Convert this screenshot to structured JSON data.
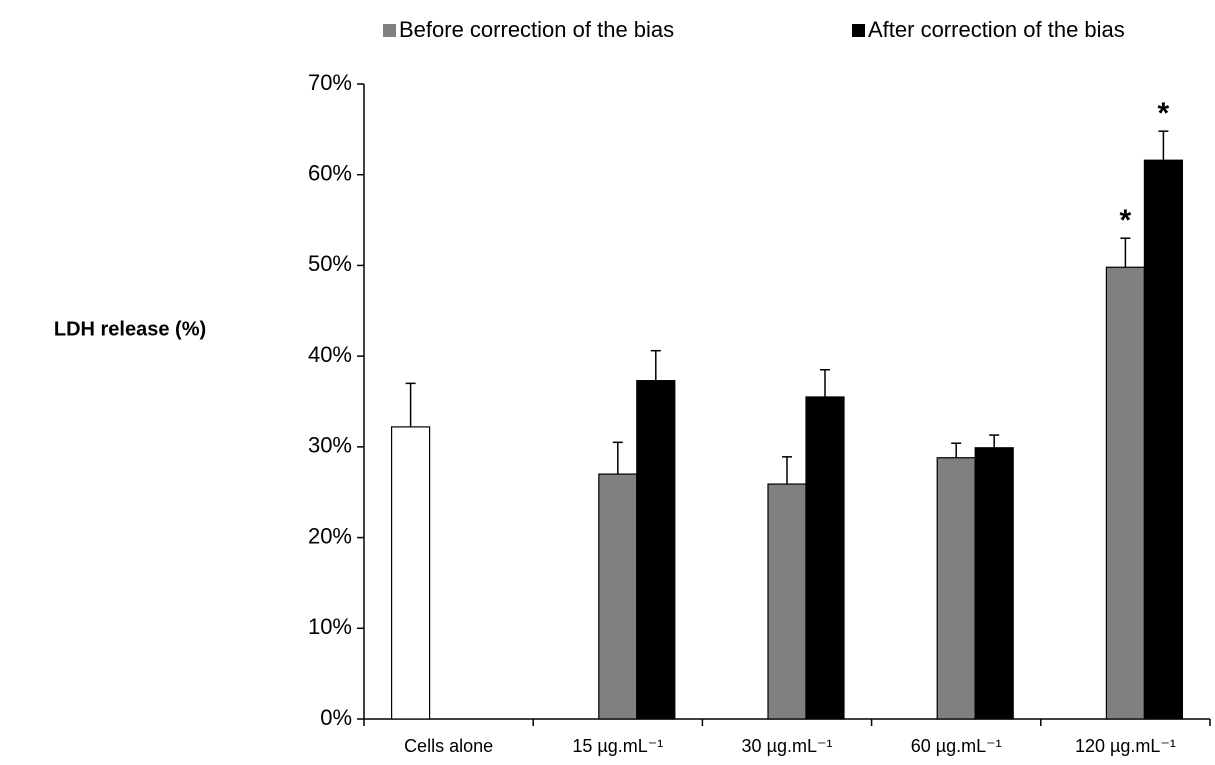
{
  "chart_data": {
    "type": "bar",
    "y_label": "LDH release (%)",
    "categories": [
      "Cells alone",
      "15 µg.mL⁻¹",
      "30 µg.mL⁻¹",
      "60 µg.mL⁻¹",
      "120 µg.mL⁻¹"
    ],
    "series": [
      {
        "color": "#ffffff",
        "values": [
          32.2,
          null,
          null,
          null,
          null
        ],
        "errors": [
          4.8,
          null,
          null,
          null,
          null
        ],
        "significance": [
          null,
          null,
          null,
          null,
          null
        ]
      },
      {
        "name": "Before correction of the bias",
        "color": "#808080",
        "values": [
          null,
          27.0,
          25.9,
          28.8,
          49.8
        ],
        "errors": [
          null,
          3.5,
          3.0,
          1.6,
          3.2
        ],
        "significance": [
          null,
          null,
          null,
          null,
          "*"
        ]
      },
      {
        "name": "After correction of the bias",
        "color": "#000000",
        "values": [
          null,
          37.3,
          35.5,
          29.9,
          61.6
        ],
        "errors": [
          null,
          3.3,
          3.0,
          1.4,
          3.2
        ],
        "significance": [
          null,
          null,
          null,
          null,
          "*"
        ]
      }
    ],
    "ylim": [
      0,
      70
    ],
    "yticks": [
      {
        "value": 0,
        "label": "0%"
      },
      {
        "value": 10,
        "label": "10%"
      },
      {
        "value": 20,
        "label": "20%"
      },
      {
        "value": 30,
        "label": "30%"
      },
      {
        "value": 40,
        "label": "40%"
      },
      {
        "value": 50,
        "label": "50%"
      },
      {
        "value": 60,
        "label": "60%"
      },
      {
        "value": 70,
        "label": "70%"
      }
    ],
    "grid": false,
    "legend": "top"
  }
}
